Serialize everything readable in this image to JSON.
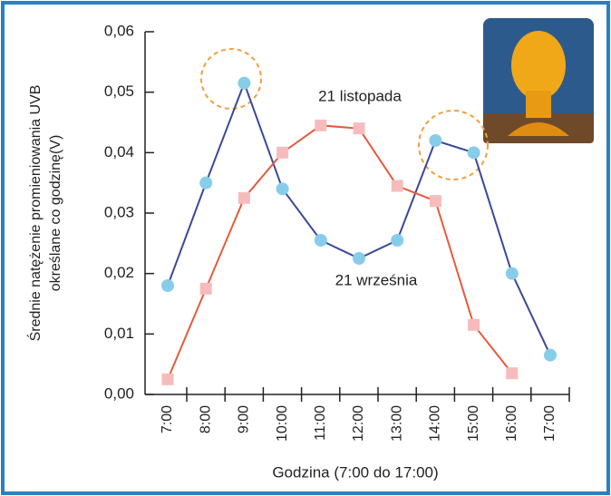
{
  "chart_data": {
    "type": "line",
    "y_label": [
      "Średnie natężenie promieniowania UVB",
      "określane co godzinę(V)"
    ],
    "x_label": "Godzina (7:00 do 17:00)",
    "categories": [
      "7:00",
      "8:00",
      "9:00",
      "10:00",
      "11:00",
      "12:00",
      "13:00",
      "14:00",
      "15:00",
      "16:00",
      "17:00"
    ],
    "series": [
      {
        "name": "21 września",
        "color": "#3b4896",
        "marker_color": "#86cdea",
        "marker": "circle",
        "values": [
          0.018,
          0.035,
          0.0515,
          0.034,
          0.0255,
          0.0225,
          0.0255,
          0.042,
          0.04,
          0.02,
          0.0065
        ]
      },
      {
        "name": "21 listopada",
        "color": "#e65a3f",
        "marker_color": "#f6bcbc",
        "marker": "square",
        "values": [
          0.0025,
          0.0175,
          0.0325,
          0.04,
          0.0445,
          0.044,
          0.0345,
          0.032,
          0.0115,
          0.0035,
          null
        ]
      }
    ],
    "ylim": [
      0,
      0.06
    ],
    "yticks": [
      {
        "value": 0,
        "label": "0,00"
      },
      {
        "value": 0.01,
        "label": "0,01"
      },
      {
        "value": 0.02,
        "label": "0,02"
      },
      {
        "value": 0.03,
        "label": "0,03"
      },
      {
        "value": 0.04,
        "label": "0,04"
      },
      {
        "value": 0.05,
        "label": "0,05"
      },
      {
        "value": 0.06,
        "label": "0,06"
      }
    ]
  }
}
